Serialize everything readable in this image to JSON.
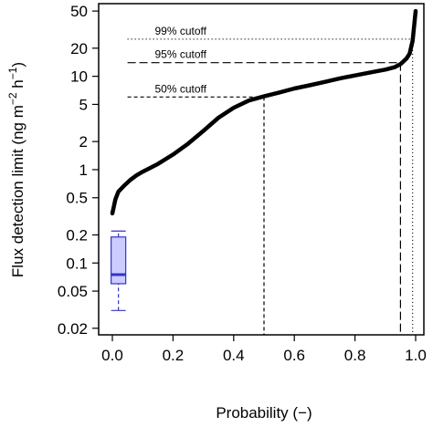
{
  "chart_data": {
    "type": "line",
    "xlabel": "Probability (−)",
    "ylabel": "Flux detection limit (ng m⁻² h⁻¹)",
    "ylabel_parts": {
      "main": "Flux detection limit (ng m",
      "sup1": "−2",
      "mid": " h",
      "sup2": "−1",
      "end": ")"
    },
    "xlim": [
      0,
      1
    ],
    "ylim": [
      0.017,
      60
    ],
    "yscale": "log",
    "grid": false,
    "x_ticks": [
      0.0,
      0.2,
      0.4,
      0.6,
      0.8,
      1.0
    ],
    "x_tick_labels": [
      "0.0",
      "0.2",
      "0.4",
      "0.6",
      "0.8",
      "1.0"
    ],
    "y_ticks": [
      0.02,
      0.05,
      0.1,
      0.2,
      0.5,
      1,
      2,
      5,
      10,
      20,
      50
    ],
    "y_tick_labels": [
      "0.02",
      "0.05",
      "0.1",
      "0.2",
      "0.5",
      "1",
      "2",
      "5",
      "10",
      "20",
      "50"
    ],
    "series": [
      {
        "color": "#000000",
        "x": [
          0.0,
          0.01,
          0.02,
          0.04,
          0.06,
          0.08,
          0.1,
          0.15,
          0.2,
          0.25,
          0.3,
          0.35,
          0.4,
          0.45,
          0.5,
          0.55,
          0.6,
          0.65,
          0.7,
          0.75,
          0.8,
          0.85,
          0.9,
          0.93,
          0.95,
          0.97,
          0.98,
          0.99,
          1.0
        ],
        "y": [
          0.34,
          0.48,
          0.58,
          0.68,
          0.78,
          0.87,
          0.95,
          1.15,
          1.45,
          1.9,
          2.6,
          3.6,
          4.6,
          5.5,
          6.1,
          6.7,
          7.4,
          8.0,
          8.7,
          9.5,
          10.2,
          11.0,
          11.8,
          12.5,
          13.5,
          15.5,
          17.5,
          24,
          50
        ]
      }
    ],
    "cutoffs": [
      {
        "label": "50% cutoff",
        "x": 0.5,
        "y": 6.0,
        "dash": "4,3"
      },
      {
        "label": "95% cutoff",
        "x": 0.95,
        "y": 14.0,
        "dash": "9,4"
      },
      {
        "label": "99% cutoff",
        "x": 0.99,
        "y": 25.0,
        "dash": "1,3"
      }
    ],
    "boxplot": {
      "x": 0.02,
      "whisker_low": 0.031,
      "q1": 0.06,
      "median": 0.075,
      "q3": 0.19,
      "whisker_high": 0.22,
      "fill": "#ccccff",
      "stroke": "#3333cc"
    }
  }
}
